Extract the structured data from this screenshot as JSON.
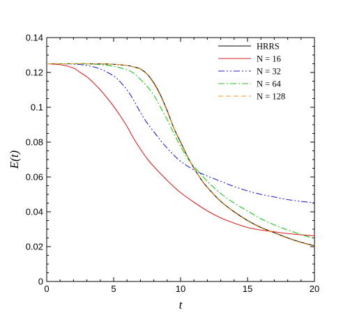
{
  "chart_data": {
    "type": "line",
    "xlabel": "t",
    "ylabel": "E(t)",
    "xlim": [
      0,
      20
    ],
    "ylim": [
      0,
      0.14
    ],
    "xticks": [
      0,
      5,
      10,
      15,
      20
    ],
    "xtick_labels": [
      "0",
      "5",
      "10",
      "15",
      "20"
    ],
    "yticks": [
      0,
      0.02,
      0.04,
      0.06,
      0.08,
      0.1,
      0.12,
      0.14
    ],
    "ytick_labels": [
      "0",
      "0.02",
      "0.04",
      "0.06",
      "0.08",
      "0.1",
      "0.12",
      "0.14"
    ],
    "grid": false,
    "legend_position": "top-right",
    "series": [
      {
        "name": "HRRS",
        "color": "#000000",
        "dash": "solid",
        "x": [
          0,
          1,
          2,
          3,
          4,
          5,
          6,
          6.5,
          7,
          7.5,
          8,
          8.5,
          9,
          9.5,
          10,
          10.5,
          11,
          11.5,
          12,
          13,
          14,
          15,
          16,
          17,
          18,
          19,
          20
        ],
        "y": [
          0.125,
          0.125,
          0.125,
          0.125,
          0.1249,
          0.1247,
          0.124,
          0.1232,
          0.122,
          0.119,
          0.114,
          0.107,
          0.098,
          0.088,
          0.08,
          0.072,
          0.065,
          0.059,
          0.054,
          0.046,
          0.04,
          0.035,
          0.031,
          0.028,
          0.025,
          0.0225,
          0.0205
        ]
      },
      {
        "name": "N = 16",
        "color": "#d62020",
        "dash": "solid",
        "x": [
          0,
          1,
          2,
          2.5,
          3,
          3.5,
          4,
          4.5,
          5,
          5.5,
          6,
          6.5,
          7,
          7.5,
          8,
          9,
          10,
          11,
          12,
          13,
          14,
          15,
          16,
          17,
          18,
          19,
          20
        ],
        "y": [
          0.125,
          0.1245,
          0.1225,
          0.12,
          0.1175,
          0.114,
          0.11,
          0.1055,
          0.1005,
          0.095,
          0.089,
          0.082,
          0.076,
          0.0705,
          0.066,
          0.058,
          0.051,
          0.0455,
          0.0405,
          0.0365,
          0.0335,
          0.031,
          0.0295,
          0.0285,
          0.0275,
          0.0268,
          0.0262
        ]
      },
      {
        "name": "N = 32",
        "color": "#1f1fd6",
        "dash": "dashdotdot",
        "x": [
          0,
          1,
          2,
          3,
          4,
          5,
          5.5,
          6,
          6.5,
          7,
          7.5,
          8,
          8.5,
          9,
          9.5,
          10,
          11,
          12,
          13,
          14,
          15,
          16,
          17,
          18,
          19,
          20
        ],
        "y": [
          0.125,
          0.125,
          0.1248,
          0.124,
          0.122,
          0.118,
          0.1145,
          0.11,
          0.104,
          0.097,
          0.091,
          0.086,
          0.081,
          0.0765,
          0.0725,
          0.069,
          0.064,
          0.0605,
          0.0575,
          0.0545,
          0.052,
          0.05,
          0.0485,
          0.047,
          0.046,
          0.0452
        ]
      },
      {
        "name": "N = 64",
        "color": "#1ec41e",
        "dash": "dashdot",
        "x": [
          0,
          1,
          2,
          3,
          4,
          5,
          6,
          6.5,
          7,
          7.5,
          8,
          8.5,
          9,
          9.5,
          10,
          10.5,
          11,
          12,
          13,
          14,
          15,
          16,
          17,
          18,
          19,
          20
        ],
        "y": [
          0.125,
          0.125,
          0.125,
          0.1249,
          0.1245,
          0.1235,
          0.1215,
          0.1195,
          0.116,
          0.112,
          0.107,
          0.1,
          0.093,
          0.085,
          0.0775,
          0.071,
          0.066,
          0.0575,
          0.0505,
          0.045,
          0.0405,
          0.036,
          0.0325,
          0.0295,
          0.027,
          0.0245
        ]
      },
      {
        "name": "N = 128",
        "color": "#f7941d",
        "dash": "dashed",
        "x": [
          0,
          1,
          2,
          3,
          4,
          5,
          6,
          6.5,
          7,
          7.5,
          8,
          8.5,
          9,
          9.5,
          10,
          10.5,
          11,
          11.5,
          12,
          13,
          14,
          15,
          16,
          17,
          18,
          19,
          20
        ],
        "y": [
          0.125,
          0.125,
          0.125,
          0.125,
          0.1249,
          0.1247,
          0.124,
          0.1231,
          0.1218,
          0.1188,
          0.1135,
          0.1065,
          0.0975,
          0.0878,
          0.0795,
          0.0718,
          0.0648,
          0.0588,
          0.0538,
          0.0458,
          0.0398,
          0.0348,
          0.0308,
          0.0278,
          0.0248,
          0.0223,
          0.0203
        ]
      }
    ]
  }
}
